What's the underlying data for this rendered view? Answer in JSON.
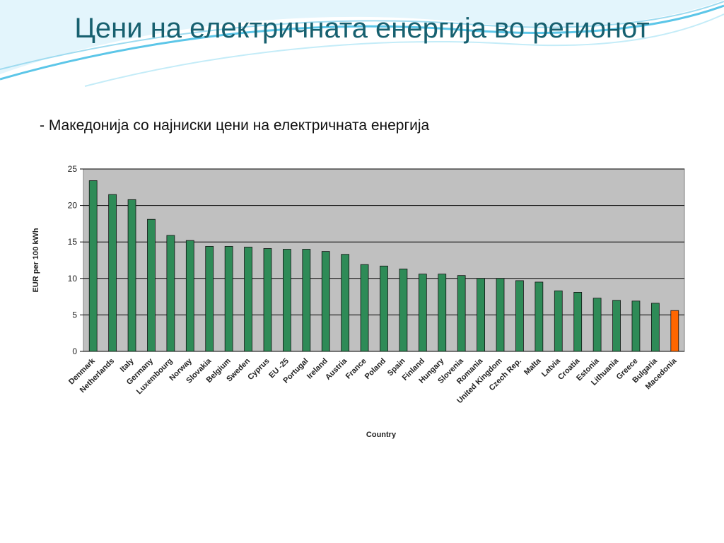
{
  "slide": {
    "title": "Цени на електричната енергија во регионот",
    "subtitle": "- Македонија со најниски цени на електричната енергија"
  },
  "colors": {
    "title": "#17606f",
    "plot_background": "#c0c0c0",
    "bar": "#2e8b57",
    "bar_highlight": "#ff6600",
    "decor_wave": "#5cc6e8"
  },
  "chart_data": {
    "type": "bar",
    "title": "",
    "xlabel": "Country",
    "ylabel": "EUR per 100 kWh",
    "ylim": [
      0,
      25
    ],
    "yticks": [
      0,
      5,
      10,
      15,
      20,
      25
    ],
    "grid": true,
    "legend": "none",
    "highlight": "Macedonia",
    "categories": [
      "Denmark",
      "Netherlands",
      "Italy",
      "Germany",
      "Luxembourg",
      "Norway",
      "Slovakia",
      "Belgium",
      "Sweden",
      "Cyprus",
      "EU -25",
      "Portugal",
      "Ireland",
      "Austria",
      "France",
      "Poland",
      "Spain",
      "Finland",
      "Hungary",
      "Slovenia",
      "Romania",
      "United Kingdom",
      "Czech Rep.",
      "Malta",
      "Latvia",
      "Croatia",
      "Estonia",
      "Lithuania",
      "Greece",
      "Bulgaria",
      "Macedonia"
    ],
    "values": [
      23.4,
      21.5,
      20.8,
      18.1,
      15.9,
      15.2,
      14.4,
      14.4,
      14.3,
      14.1,
      14.0,
      14.0,
      13.7,
      13.3,
      11.9,
      11.7,
      11.3,
      10.6,
      10.6,
      10.4,
      10.0,
      10.0,
      9.7,
      9.5,
      8.3,
      8.1,
      7.3,
      7.0,
      6.9,
      6.6,
      5.6
    ]
  }
}
